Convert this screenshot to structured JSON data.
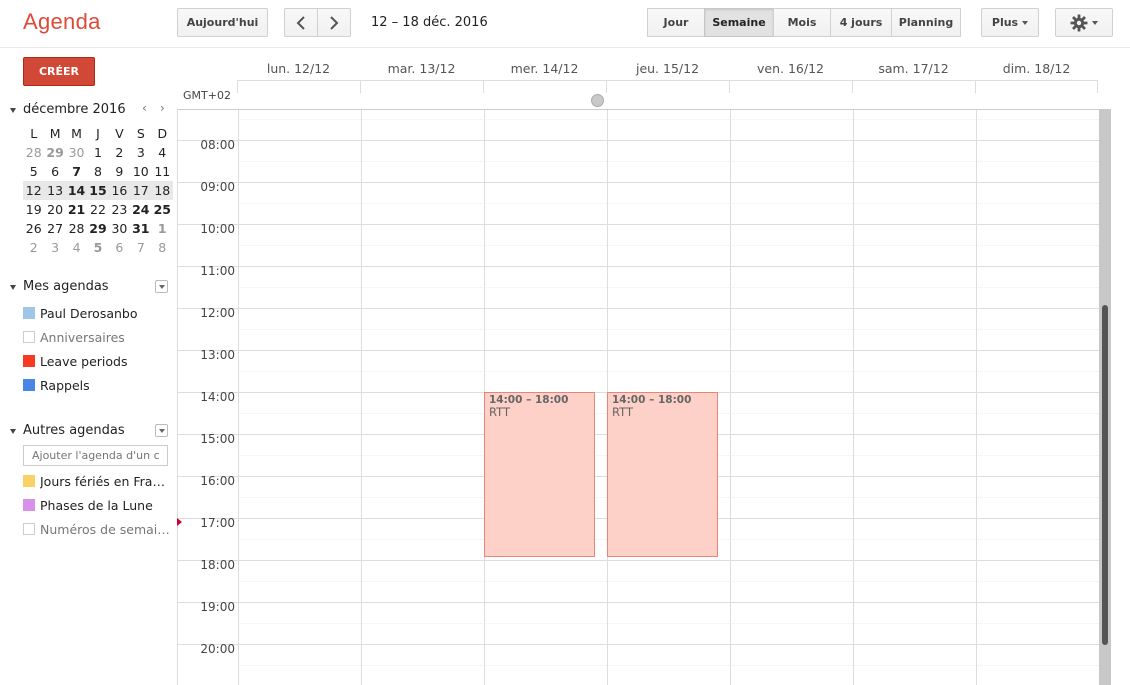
{
  "app": {
    "title": "Agenda"
  },
  "toolbar": {
    "today_label": "Aujourd'hui",
    "prev_icon": "chevron-left-icon",
    "next_icon": "chevron-right-icon",
    "range_label": "12 – 18 déc. 2016",
    "views": [
      "Jour",
      "Semaine",
      "Mois",
      "4 jours",
      "Planning"
    ],
    "active_view": "Semaine",
    "more_label": "Plus",
    "settings_icon": "gear-icon"
  },
  "sidebar": {
    "create_label": "CRÉER",
    "mini_calendar": {
      "title": "décembre 2016",
      "weekdays": [
        "L",
        "M",
        "M",
        "J",
        "V",
        "S",
        "D"
      ],
      "weeks": [
        [
          "28",
          "29",
          "30",
          "1",
          "2",
          "3",
          "4"
        ],
        [
          "5",
          "6",
          "7",
          "8",
          "9",
          "10",
          "11"
        ],
        [
          "12",
          "13",
          "14",
          "15",
          "16",
          "17",
          "18"
        ],
        [
          "19",
          "20",
          "21",
          "22",
          "23",
          "24",
          "25"
        ],
        [
          "26",
          "27",
          "28",
          "29",
          "30",
          "31",
          "1"
        ],
        [
          "2",
          "3",
          "4",
          "5",
          "6",
          "7",
          "8"
        ]
      ]
    },
    "my_calendars": {
      "title": "Mes agendas",
      "items": [
        {
          "label": "Paul Derosanbo",
          "color": "#9fc6e7"
        },
        {
          "label": "Anniversaires",
          "color": ""
        },
        {
          "label": "Leave periods",
          "color": "#f83a22"
        },
        {
          "label": "Rappels",
          "color": "#4986e7"
        }
      ]
    },
    "other_calendars": {
      "title": "Autres agendas",
      "add_placeholder": "Ajouter l'agenda d'un co",
      "items": [
        {
          "label": "Jours fériés en Fran…",
          "color": "#fad165"
        },
        {
          "label": "Phases de la Lune",
          "color": "#cd74e6"
        },
        {
          "label": "Numéros de semaine",
          "color": ""
        }
      ]
    }
  },
  "week": {
    "timezone": "GMT+02",
    "days": [
      "lun. 12/12",
      "mar. 13/12",
      "mer. 14/12",
      "jeu. 15/12",
      "ven. 16/12",
      "sam. 17/12",
      "dim. 18/12"
    ],
    "hours": [
      "08:00",
      "09:00",
      "10:00",
      "11:00",
      "12:00",
      "13:00",
      "14:00",
      "15:00",
      "16:00",
      "17:00",
      "18:00",
      "19:00",
      "20:00"
    ],
    "events": [
      {
        "time": "14:00 – 18:00",
        "title": "RTT",
        "day": 2,
        "start": 14,
        "end": 18
      },
      {
        "time": "14:00 – 18:00",
        "title": "RTT",
        "day": 3,
        "start": 14,
        "end": 18
      }
    ]
  }
}
